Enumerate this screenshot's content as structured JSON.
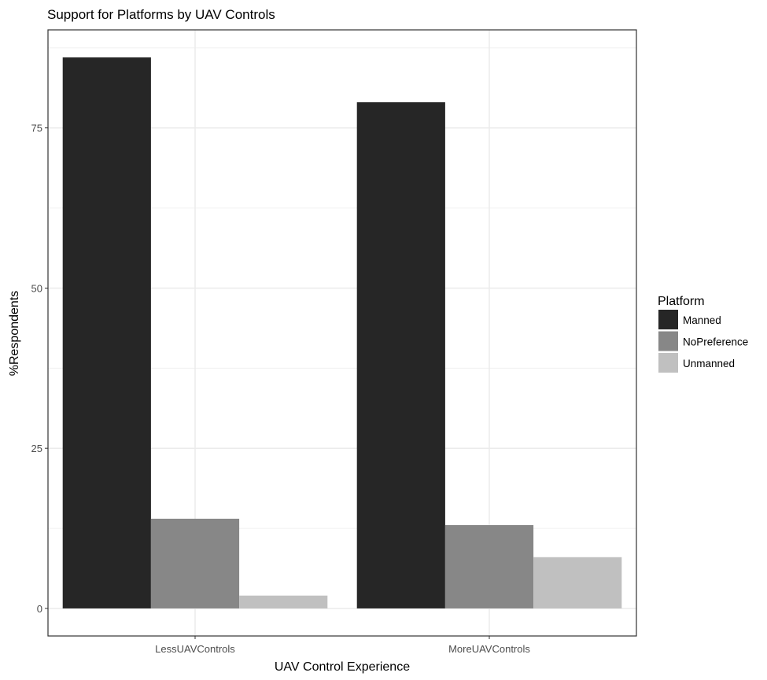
{
  "chart_data": {
    "type": "bar",
    "title": "Support for Platforms by UAV Controls",
    "xlabel": "UAV Control Experience",
    "ylabel": "%Respondents",
    "categories": [
      "LessUAVControls",
      "MoreUAVControls"
    ],
    "series": [
      {
        "name": "Manned",
        "color": "#262626",
        "values": [
          86,
          79
        ]
      },
      {
        "name": "NoPreference",
        "color": "#878787",
        "values": [
          14,
          13
        ]
      },
      {
        "name": "Unmanned",
        "color": "#c0c0c0",
        "values": [
          2,
          8
        ]
      }
    ],
    "yticks": [
      0,
      25,
      50,
      75
    ],
    "ylim": [
      -4.3,
      90.3
    ],
    "grid": true,
    "legend": {
      "title": "Platform",
      "position": "right"
    }
  }
}
